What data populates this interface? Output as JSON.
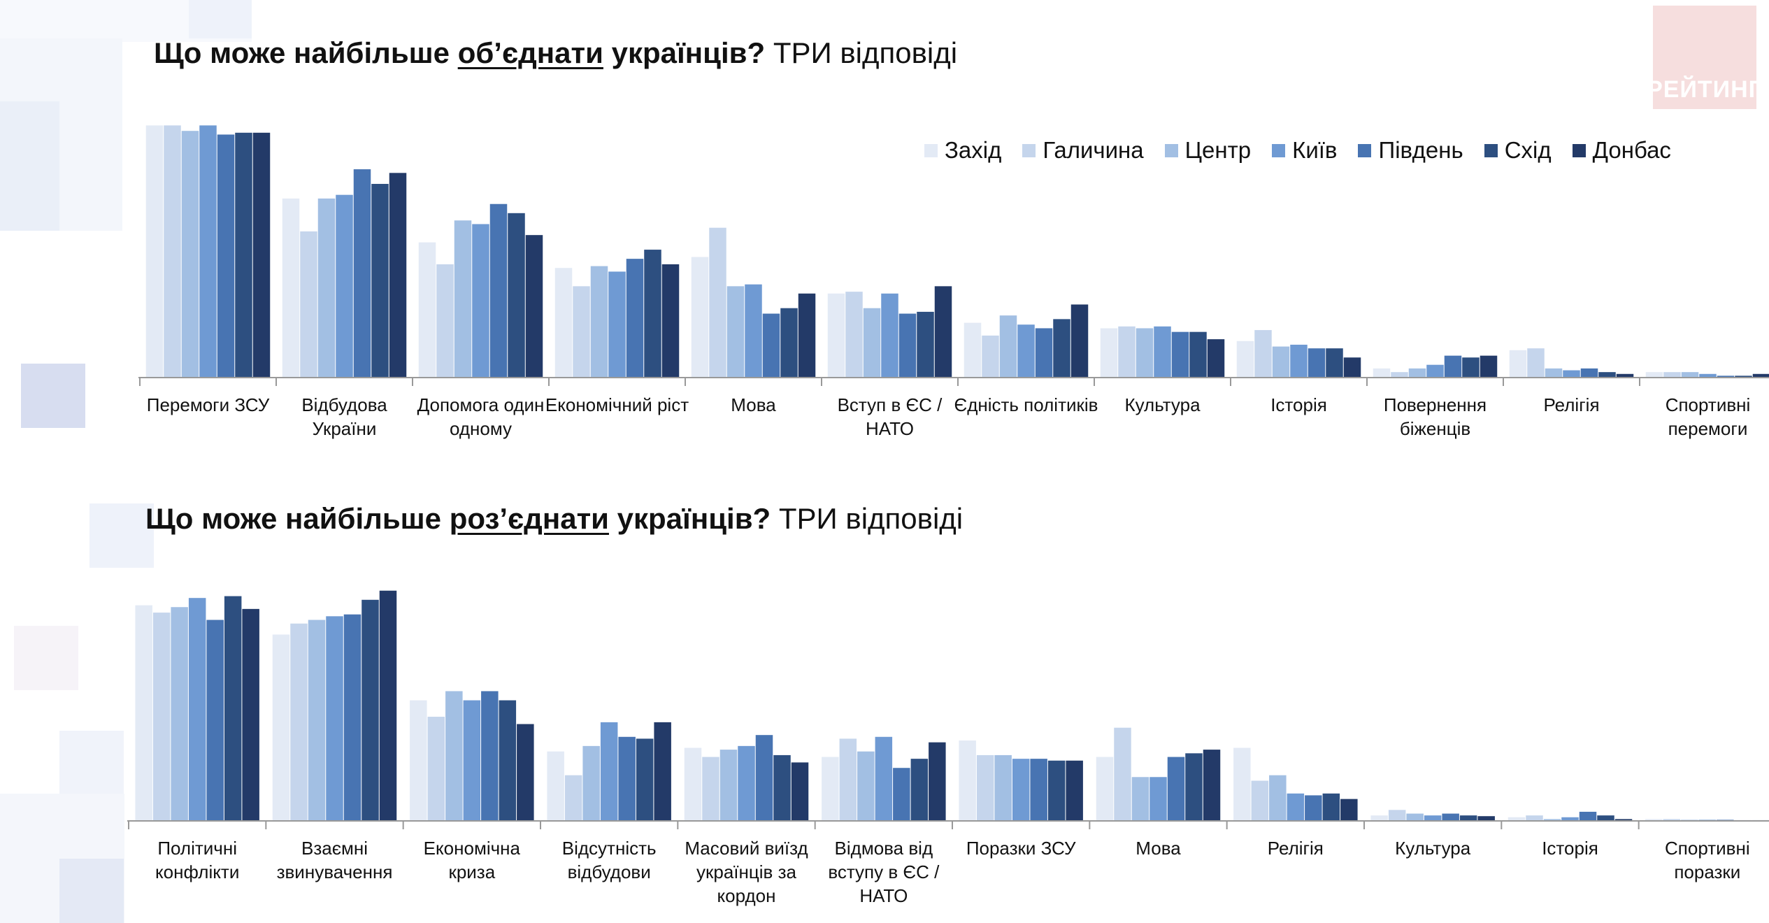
{
  "logo_text": "РЕЙТИНГ",
  "colors": [
    "#e3eaf5",
    "#c5d5ec",
    "#a2bfe3",
    "#6f9ad3",
    "#4874b2",
    "#2d4f80",
    "#233a68"
  ],
  "legend": [
    "Захід",
    "Галичина",
    "Центр",
    "Київ",
    "Південь",
    "Схід",
    "Донбас"
  ],
  "titles": [
    {
      "bold_pre": "Що може найбільше ",
      "underlined": "об’єднати",
      "bold_post": " українців?",
      "normal": " ТРИ відповіді"
    },
    {
      "bold_pre": "Що може найбільше ",
      "underlined": "роз’єднати",
      "bold_post": " українців?",
      "normal": " ТРИ відповіді"
    }
  ],
  "chart_data": [
    {
      "type": "bar",
      "title": "Що може найбільше об’єднати українців? ТРИ відповіді",
      "categories": [
        [
          "Перемоги ЗСУ"
        ],
        [
          "Відбудова",
          "України"
        ],
        [
          "Допомога один",
          "одному"
        ],
        [
          "Економічний ріст"
        ],
        [
          "Мова"
        ],
        [
          "Вступ в ЄС /",
          "НАТО"
        ],
        [
          "Єдність політиків"
        ],
        [
          "Культура"
        ],
        [
          "Історія"
        ],
        [
          "Повернення",
          "біженців"
        ],
        [
          "Релігія"
        ],
        [
          "Спортивні",
          "перемоги"
        ]
      ],
      "series": [
        {
          "name": "Захід",
          "values": [
            69,
            49,
            37,
            30,
            33,
            23,
            15,
            13.5,
            10,
            2.5,
            7.5,
            1.5
          ]
        },
        {
          "name": "Галичина",
          "values": [
            69,
            40,
            31,
            25,
            41,
            23.5,
            11.5,
            14,
            13,
            1.5,
            8,
            1.5
          ]
        },
        {
          "name": "Центр",
          "values": [
            67.5,
            49,
            43,
            30.5,
            25,
            19,
            17,
            13.5,
            8.5,
            2.5,
            2.5,
            1.5
          ]
        },
        {
          "name": "Київ",
          "values": [
            69,
            50,
            42,
            29,
            25.5,
            23,
            14.5,
            14,
            9,
            3.5,
            2,
            1
          ]
        },
        {
          "name": "Південь",
          "values": [
            66.5,
            57,
            47.5,
            32.5,
            17.5,
            17.5,
            13.5,
            12.5,
            8,
            6,
            2.5,
            0.5
          ]
        },
        {
          "name": "Схід",
          "values": [
            67,
            53,
            45,
            35,
            19,
            18,
            16,
            12.5,
            8,
            5.5,
            1.5,
            0.5
          ]
        },
        {
          "name": "Донбас",
          "values": [
            67,
            56,
            39,
            31,
            23,
            25,
            20,
            10.5,
            5.5,
            6,
            1,
            1
          ]
        }
      ],
      "ylim": [
        0,
        75
      ]
    },
    {
      "type": "bar",
      "title": "Що може найбільше роз’єднати українців? ТРИ відповіді",
      "categories": [
        [
          "Політичні",
          "конфлікти"
        ],
        [
          "Взаємні",
          "звинувачення"
        ],
        [
          "Економічна",
          "криза"
        ],
        [
          "Відсутність",
          "відбудови"
        ],
        [
          "Масовий виїзд",
          "українців за",
          "кордон"
        ],
        [
          "Відмова від",
          "вступу в ЄС /",
          "НАТО"
        ],
        [
          "Поразки ЗСУ"
        ],
        [
          "Мова"
        ],
        [
          "Релігія"
        ],
        [
          "Культура"
        ],
        [
          "Історія"
        ],
        [
          "Спортивні",
          "поразки"
        ]
      ],
      "series": [
        {
          "name": "Захід",
          "values": [
            59,
            51,
            33,
            19,
            20,
            17.5,
            22,
            17.5,
            20,
            1.5,
            1,
            0.5
          ]
        },
        {
          "name": "Галичина",
          "values": [
            57,
            54,
            28.5,
            12.5,
            17.5,
            22.5,
            18,
            25.5,
            11,
            3,
            1.5,
            0.5
          ]
        },
        {
          "name": "Центр",
          "values": [
            58.5,
            55,
            35.5,
            20.5,
            19.5,
            19,
            18,
            12,
            12.5,
            2,
            0.5,
            0.3
          ]
        },
        {
          "name": "Київ",
          "values": [
            61,
            56,
            33,
            27,
            20.5,
            23,
            17,
            12,
            7.5,
            1.5,
            1,
            0.3
          ]
        },
        {
          "name": "Південь",
          "values": [
            55,
            56.5,
            35.5,
            23,
            23.5,
            14.5,
            17,
            17.5,
            7,
            2,
            2.5,
            0.3
          ]
        },
        {
          "name": "Схід",
          "values": [
            61.5,
            60.5,
            33,
            22.5,
            18,
            17,
            16.5,
            18.5,
            7.5,
            1.5,
            1.5,
            0.2
          ]
        },
        {
          "name": "Донбас",
          "values": [
            58,
            63,
            26.5,
            27,
            16,
            21.5,
            16.5,
            19.5,
            6,
            1.3,
            0.5,
            0.2
          ]
        }
      ],
      "ylim": [
        0,
        75
      ]
    }
  ]
}
